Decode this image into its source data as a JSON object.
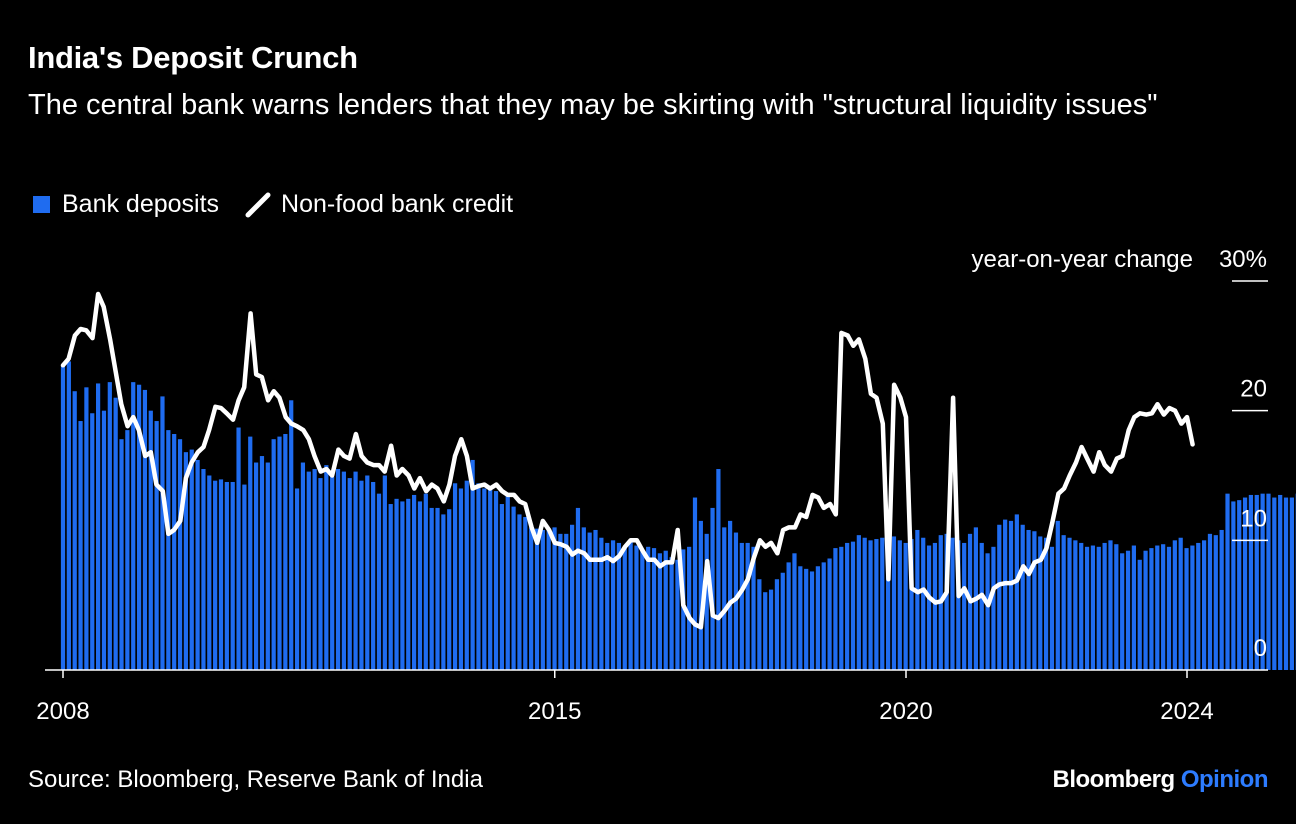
{
  "title": "India's Deposit Crunch",
  "subtitle": "The central bank warns lenders that they may be skirting with \"structural liquidity issues\"",
  "legend": {
    "deposits_label": "Bank deposits",
    "credit_label": "Non-food bank credit"
  },
  "source": "Source: Bloomberg, Reserve Bank of India",
  "brand": {
    "name": "Bloomberg",
    "accent": "Opinion"
  },
  "colors": {
    "background": "#000000",
    "deposits": "#1f6cf0",
    "credit": "#ffffff",
    "brand_accent": "#2d7cff"
  },
  "chart_data": {
    "type": "bar",
    "title": "India's Deposit Crunch",
    "ylabel": "year-on-year change",
    "ylim": [
      0,
      30
    ],
    "yticks": [
      0,
      10,
      20,
      30
    ],
    "ytick_labels": [
      "0",
      "10",
      "20",
      "30%"
    ],
    "xlim": [
      2008.0,
      2025.0
    ],
    "xticks": [
      2008,
      2015,
      2020,
      2024
    ],
    "xtick_labels": [
      "2008",
      "2015",
      "2020",
      "2024"
    ],
    "grid": false,
    "legend_position": "top-left",
    "series": [
      {
        "name": "Bank deposits",
        "type": "bar",
        "x_start": 2008.0,
        "step": 0.0833,
        "values": [
          23.5,
          23.8,
          21.5,
          19.2,
          21.8,
          19.8,
          22.1,
          20.0,
          22.2,
          21.0,
          17.8,
          18.5,
          22.2,
          22.0,
          21.6,
          20.0,
          19.2,
          21.1,
          18.5,
          18.2,
          17.8,
          16.8,
          17.0,
          16.2,
          15.5,
          15.0,
          14.6,
          14.7,
          14.5,
          14.5,
          18.7,
          14.3,
          18.0,
          16.0,
          16.5,
          16.0,
          17.8,
          18.0,
          18.2,
          20.8,
          14.0,
          16.0,
          15.3,
          15.5,
          14.8,
          15.8,
          14.9,
          15.5,
          15.3,
          14.8,
          15.3,
          14.6,
          15.0,
          14.5,
          13.6,
          15.0,
          12.8,
          13.2,
          13.0,
          13.2,
          13.5,
          13.0,
          13.6,
          12.5,
          12.5,
          12.0,
          12.4,
          14.4,
          14.0,
          14.6,
          16.2,
          14.4,
          14.0,
          14.2,
          13.8,
          12.8,
          13.5,
          12.6,
          12.0,
          11.8,
          11.0,
          10.9,
          10.8,
          10.9,
          11.0,
          10.5,
          10.5,
          11.2,
          12.5,
          11.0,
          10.6,
          10.8,
          10.2,
          9.8,
          10.0,
          9.8,
          9.5,
          10.0,
          9.6,
          9.2,
          9.5,
          9.4,
          9.0,
          9.2,
          8.7,
          8.5,
          9.3,
          9.5,
          13.3,
          11.5,
          10.5,
          12.5,
          15.5,
          11.0,
          11.5,
          10.6,
          9.8,
          9.8,
          9.5,
          7.0,
          6.0,
          6.2,
          7.0,
          7.5,
          8.3,
          9.0,
          8.0,
          7.8,
          7.6,
          8.0,
          8.3,
          8.6,
          9.4,
          9.5,
          9.8,
          9.9,
          10.4,
          10.2,
          10.0,
          10.1,
          10.2,
          10.4,
          10.3,
          10.0,
          9.8,
          10.1,
          10.8,
          10.2,
          9.6,
          9.8,
          10.4,
          10.5,
          10.2,
          10.0,
          9.8,
          10.5,
          11.0,
          9.8,
          9.0,
          9.5,
          11.2,
          11.6,
          11.5,
          12.0,
          11.2,
          10.8,
          10.7,
          10.3,
          10.2,
          9.5,
          11.5,
          10.4,
          10.2,
          10.0,
          9.8,
          9.5,
          9.6,
          9.5,
          9.8,
          10.0,
          9.7,
          9.0,
          9.2,
          9.6,
          8.5,
          9.2,
          9.4,
          9.6,
          9.7,
          9.5,
          10.0,
          10.2,
          9.4,
          9.6,
          9.8,
          10.0,
          10.5,
          10.4,
          10.8,
          13.6,
          13.0,
          13.1,
          13.3,
          13.5,
          13.5,
          13.6,
          13.6,
          13.3,
          13.5,
          13.3,
          13.3,
          13.6,
          13.4,
          15.1,
          11.1
        ]
      },
      {
        "name": "Non-food bank credit",
        "type": "line",
        "points": [
          [
            2008.0,
            23.5
          ],
          [
            2008.08,
            24.0
          ],
          [
            2008.17,
            25.8
          ],
          [
            2008.25,
            26.3
          ],
          [
            2008.33,
            26.2
          ],
          [
            2008.42,
            25.6
          ],
          [
            2008.5,
            29.0
          ],
          [
            2008.58,
            28.0
          ],
          [
            2008.67,
            25.5
          ],
          [
            2008.75,
            23.0
          ],
          [
            2008.83,
            20.5
          ],
          [
            2008.92,
            18.8
          ],
          [
            2009.0,
            19.5
          ],
          [
            2009.08,
            18.5
          ],
          [
            2009.17,
            16.5
          ],
          [
            2009.25,
            16.8
          ],
          [
            2009.33,
            14.3
          ],
          [
            2009.42,
            13.8
          ],
          [
            2009.5,
            10.5
          ],
          [
            2009.58,
            10.8
          ],
          [
            2009.67,
            11.5
          ],
          [
            2009.75,
            14.8
          ],
          [
            2009.83,
            16.0
          ],
          [
            2009.92,
            16.8
          ],
          [
            2010.0,
            17.2
          ],
          [
            2010.08,
            18.5
          ],
          [
            2010.17,
            20.3
          ],
          [
            2010.25,
            20.2
          ],
          [
            2010.33,
            19.8
          ],
          [
            2010.42,
            19.3
          ],
          [
            2010.5,
            20.8
          ],
          [
            2010.58,
            21.8
          ],
          [
            2010.67,
            27.5
          ],
          [
            2010.75,
            22.8
          ],
          [
            2010.83,
            22.6
          ],
          [
            2010.92,
            20.8
          ],
          [
            2011.0,
            21.5
          ],
          [
            2011.08,
            21.0
          ],
          [
            2011.17,
            19.5
          ],
          [
            2011.25,
            19.0
          ],
          [
            2011.33,
            18.8
          ],
          [
            2011.42,
            18.5
          ],
          [
            2011.5,
            17.8
          ],
          [
            2011.58,
            16.5
          ],
          [
            2011.67,
            15.3
          ],
          [
            2011.75,
            15.5
          ],
          [
            2011.83,
            15.0
          ],
          [
            2011.92,
            17.0
          ],
          [
            2012.0,
            16.5
          ],
          [
            2012.08,
            16.3
          ],
          [
            2012.17,
            18.2
          ],
          [
            2012.25,
            16.5
          ],
          [
            2012.33,
            16.0
          ],
          [
            2012.42,
            15.8
          ],
          [
            2012.5,
            15.8
          ],
          [
            2012.58,
            15.3
          ],
          [
            2012.67,
            17.3
          ],
          [
            2012.75,
            15.0
          ],
          [
            2012.83,
            15.5
          ],
          [
            2012.92,
            15.0
          ],
          [
            2013.0,
            14.0
          ],
          [
            2013.08,
            14.8
          ],
          [
            2013.17,
            13.8
          ],
          [
            2013.25,
            14.3
          ],
          [
            2013.33,
            14.0
          ],
          [
            2013.42,
            13.0
          ],
          [
            2013.5,
            14.3
          ],
          [
            2013.58,
            16.5
          ],
          [
            2013.67,
            17.8
          ],
          [
            2013.75,
            16.5
          ],
          [
            2013.83,
            14.0
          ],
          [
            2013.92,
            14.2
          ],
          [
            2014.0,
            14.3
          ],
          [
            2014.08,
            14.0
          ],
          [
            2014.17,
            14.3
          ],
          [
            2014.25,
            13.8
          ],
          [
            2014.33,
            13.5
          ],
          [
            2014.42,
            13.5
          ],
          [
            2014.5,
            13.0
          ],
          [
            2014.58,
            12.8
          ],
          [
            2014.67,
            11.0
          ],
          [
            2014.75,
            9.8
          ],
          [
            2014.83,
            11.5
          ],
          [
            2014.92,
            10.8
          ],
          [
            2015.0,
            9.8
          ],
          [
            2015.08,
            9.7
          ],
          [
            2015.17,
            9.5
          ],
          [
            2015.25,
            8.9
          ],
          [
            2015.33,
            9.2
          ],
          [
            2015.42,
            9.0
          ],
          [
            2015.5,
            8.5
          ],
          [
            2015.58,
            8.5
          ],
          [
            2015.67,
            8.5
          ],
          [
            2015.75,
            8.7
          ],
          [
            2015.83,
            8.4
          ],
          [
            2015.92,
            8.8
          ],
          [
            2016.0,
            9.5
          ],
          [
            2016.08,
            10.0
          ],
          [
            2016.17,
            10.0
          ],
          [
            2016.25,
            9.2
          ],
          [
            2016.33,
            8.5
          ],
          [
            2016.42,
            8.5
          ],
          [
            2016.5,
            8.0
          ],
          [
            2016.58,
            8.3
          ],
          [
            2016.67,
            8.3
          ],
          [
            2016.75,
            10.8
          ],
          [
            2016.83,
            5.0
          ],
          [
            2016.92,
            4.0
          ],
          [
            2017.0,
            3.5
          ],
          [
            2017.08,
            3.3
          ],
          [
            2017.17,
            8.4
          ],
          [
            2017.25,
            4.2
          ],
          [
            2017.33,
            4.0
          ],
          [
            2017.42,
            4.6
          ],
          [
            2017.5,
            5.2
          ],
          [
            2017.58,
            5.5
          ],
          [
            2017.67,
            6.2
          ],
          [
            2017.75,
            7.0
          ],
          [
            2017.83,
            8.6
          ],
          [
            2017.92,
            10.0
          ],
          [
            2018.0,
            9.5
          ],
          [
            2018.08,
            9.8
          ],
          [
            2018.17,
            9.0
          ],
          [
            2018.25,
            10.8
          ],
          [
            2018.33,
            11.0
          ],
          [
            2018.42,
            11.0
          ],
          [
            2018.5,
            12.0
          ],
          [
            2018.58,
            11.8
          ],
          [
            2018.67,
            13.5
          ],
          [
            2018.75,
            13.3
          ],
          [
            2018.83,
            12.5
          ],
          [
            2018.92,
            12.8
          ],
          [
            2019.0,
            12.0
          ],
          [
            2019.08,
            26.0
          ],
          [
            2019.17,
            25.8
          ],
          [
            2019.25,
            25.0
          ],
          [
            2019.33,
            25.5
          ],
          [
            2019.42,
            24.0
          ],
          [
            2019.5,
            21.3
          ],
          [
            2019.58,
            21.0
          ],
          [
            2019.67,
            19.0
          ],
          [
            2019.75,
            7.0
          ],
          [
            2019.83,
            22.0
          ],
          [
            2019.92,
            21.0
          ],
          [
            2020.0,
            19.5
          ],
          [
            2020.08,
            6.3
          ],
          [
            2020.17,
            6.0
          ],
          [
            2020.25,
            6.2
          ],
          [
            2020.33,
            5.6
          ],
          [
            2020.42,
            5.2
          ],
          [
            2020.5,
            5.3
          ],
          [
            2020.58,
            6.0
          ],
          [
            2020.67,
            21.0
          ],
          [
            2020.75,
            5.7
          ],
          [
            2020.83,
            6.3
          ],
          [
            2020.92,
            5.3
          ],
          [
            2021.0,
            5.5
          ],
          [
            2021.08,
            5.8
          ],
          [
            2021.17,
            5.0
          ],
          [
            2021.25,
            6.3
          ],
          [
            2021.33,
            6.6
          ],
          [
            2021.42,
            6.7
          ],
          [
            2021.5,
            6.7
          ],
          [
            2021.58,
            6.9
          ],
          [
            2021.67,
            8.0
          ],
          [
            2021.75,
            7.4
          ],
          [
            2021.83,
            8.3
          ],
          [
            2021.92,
            8.5
          ],
          [
            2022.0,
            9.4
          ],
          [
            2022.08,
            11.3
          ],
          [
            2022.17,
            13.6
          ],
          [
            2022.25,
            14.0
          ],
          [
            2022.33,
            15.0
          ],
          [
            2022.42,
            16.0
          ],
          [
            2022.5,
            17.2
          ],
          [
            2022.58,
            16.3
          ],
          [
            2022.67,
            15.3
          ],
          [
            2022.75,
            16.8
          ],
          [
            2022.83,
            15.8
          ],
          [
            2022.92,
            15.3
          ],
          [
            2023.0,
            16.3
          ],
          [
            2023.08,
            16.5
          ],
          [
            2023.17,
            18.5
          ],
          [
            2023.25,
            19.5
          ],
          [
            2023.33,
            19.8
          ],
          [
            2023.42,
            19.7
          ],
          [
            2023.5,
            19.8
          ],
          [
            2023.58,
            20.5
          ],
          [
            2023.67,
            19.7
          ],
          [
            2023.75,
            20.2
          ],
          [
            2023.83,
            20.0
          ],
          [
            2023.92,
            19.0
          ],
          [
            2024.0,
            19.5
          ],
          [
            2024.08,
            17.4
          ]
        ]
      }
    ]
  }
}
